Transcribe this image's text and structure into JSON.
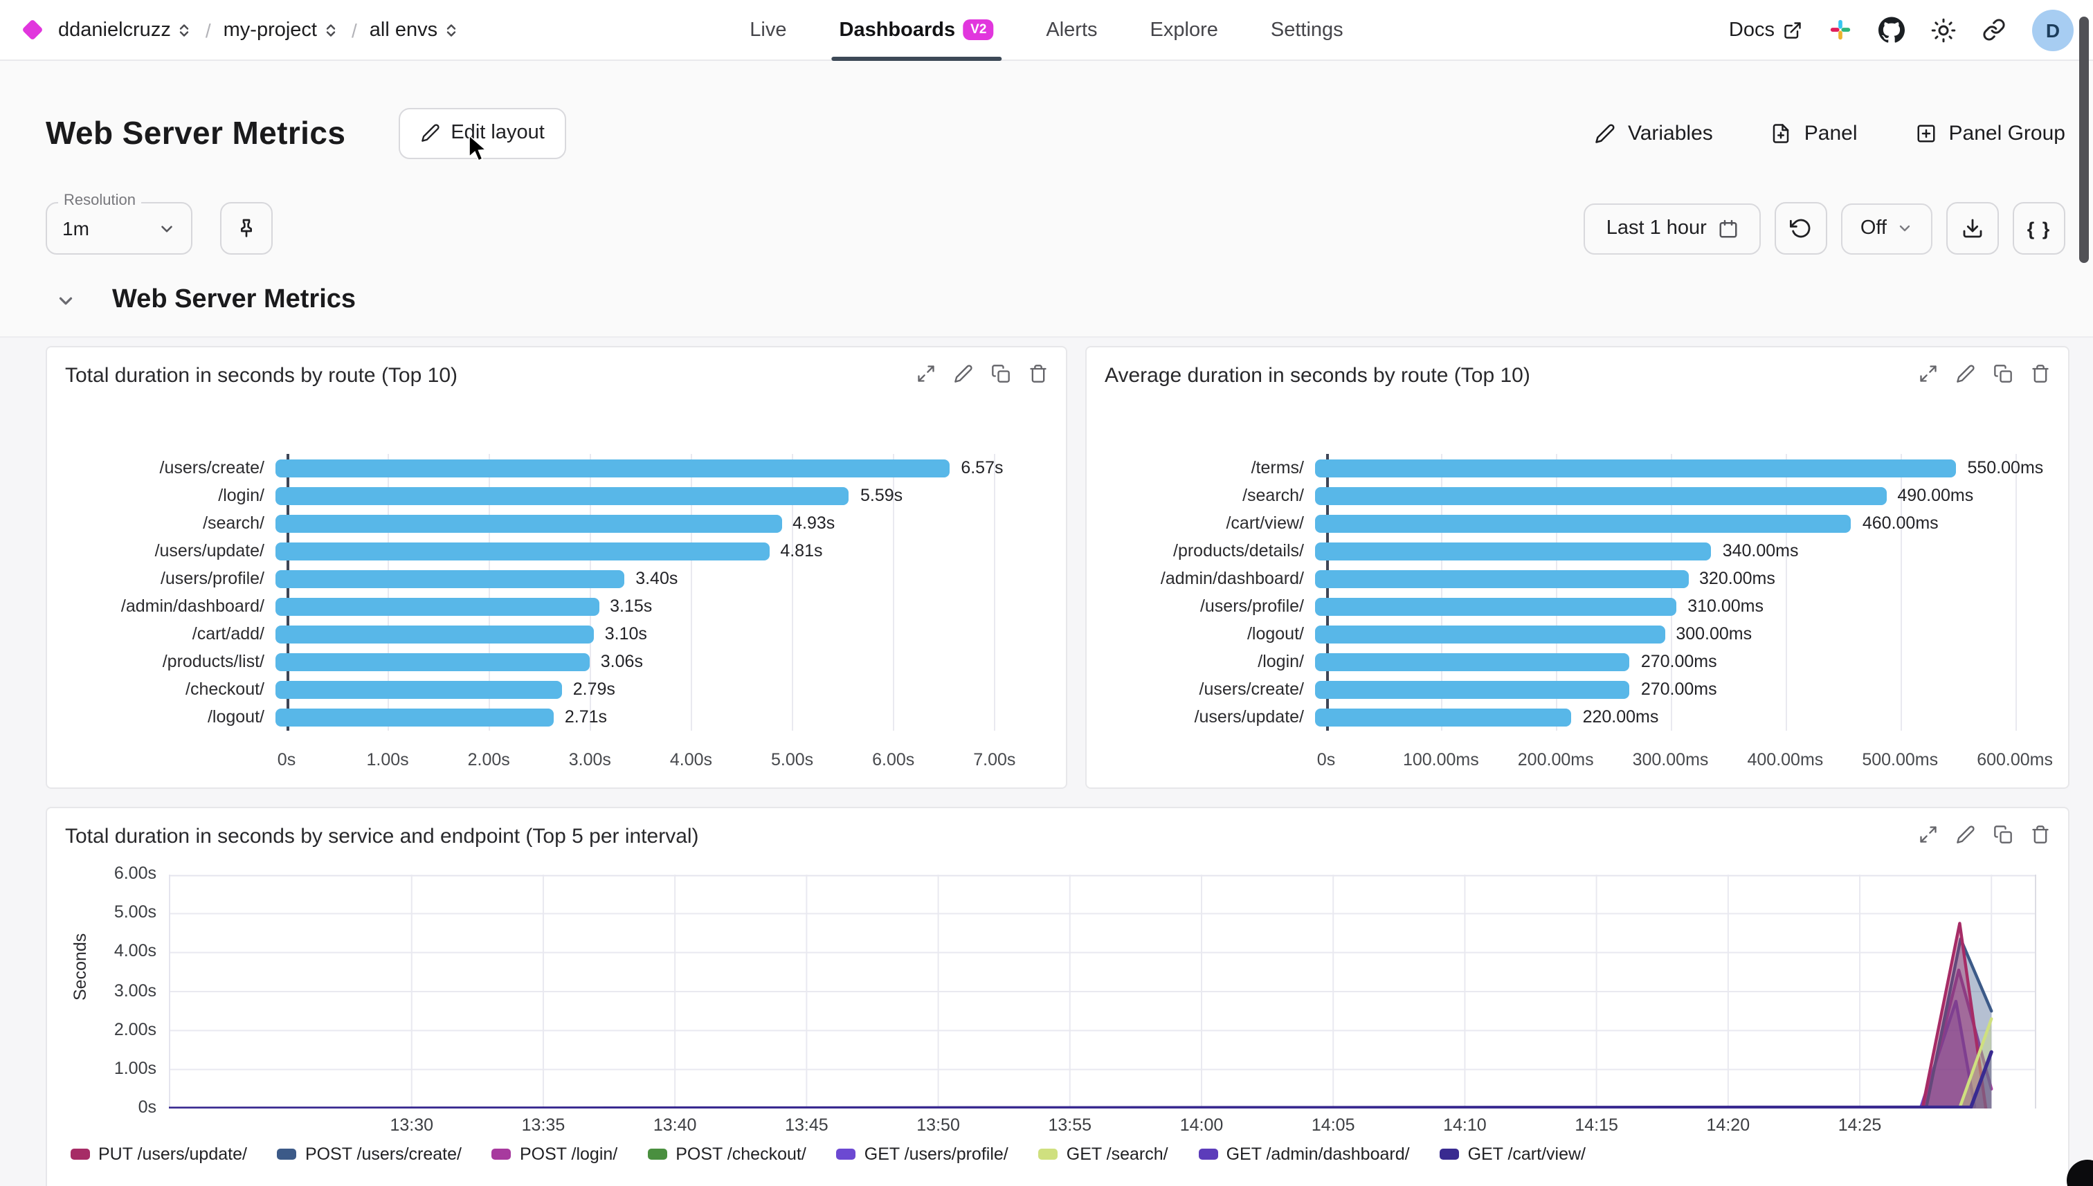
{
  "nav": {
    "breadcrumb": {
      "org": "ddanielcruzz",
      "project": "my-project",
      "env": "all envs",
      "separator": "/"
    },
    "tabs": [
      {
        "label": "Live",
        "active": false,
        "badge": null
      },
      {
        "label": "Dashboards",
        "active": true,
        "badge": "V2"
      },
      {
        "label": "Alerts",
        "active": false,
        "badge": null
      },
      {
        "label": "Explore",
        "active": false,
        "badge": null
      },
      {
        "label": "Settings",
        "active": false,
        "badge": null
      }
    ],
    "docs_label": "Docs",
    "avatar_initial": "D"
  },
  "header": {
    "title": "Web Server Metrics",
    "edit_layout_label": "Edit layout",
    "variables_label": "Variables",
    "panel_label": "Panel",
    "panel_group_label": "Panel Group"
  },
  "controls": {
    "resolution_label": "Resolution",
    "resolution_value": "1m",
    "time_range_label": "Last 1 hour",
    "refresh_mode": "Off",
    "braces_label": "{ }"
  },
  "section": {
    "title": "Web Server Metrics"
  },
  "colors": {
    "accent_magenta": "#e136dd",
    "bar_blue": "#58b7e8",
    "active_tab_underline": "#3d4957",
    "avatar_bg": "#a7cdf2",
    "grid_line": "#e9e9f0"
  },
  "chart_data": [
    {
      "type": "bar",
      "orientation": "horizontal",
      "title": "Total duration in seconds by route (Top 10)",
      "categories": [
        "/users/create/",
        "/login/",
        "/search/",
        "/users/update/",
        "/users/profile/",
        "/admin/dashboard/",
        "/cart/add/",
        "/products/list/",
        "/checkout/",
        "/logout/"
      ],
      "values": [
        6.57,
        5.59,
        4.93,
        4.81,
        3.4,
        3.15,
        3.1,
        3.06,
        2.79,
        2.71
      ],
      "value_labels": [
        "6.57s",
        "5.59s",
        "4.93s",
        "4.81s",
        "3.40s",
        "3.15s",
        "3.10s",
        "3.06s",
        "2.79s",
        "2.71s"
      ],
      "xticks": [
        {
          "label": "0s",
          "v": 0
        },
        {
          "label": "1.00s",
          "v": 1
        },
        {
          "label": "2.00s",
          "v": 2
        },
        {
          "label": "3.00s",
          "v": 3
        },
        {
          "label": "4.00s",
          "v": 4
        },
        {
          "label": "5.00s",
          "v": 5
        },
        {
          "label": "6.00s",
          "v": 6
        },
        {
          "label": "7.00s",
          "v": 7
        }
      ],
      "axis_span": 7.35,
      "bar_color": "#58b7e8",
      "grid": true
    },
    {
      "type": "bar",
      "orientation": "horizontal",
      "title": "Average duration in seconds by route (Top 10)",
      "categories": [
        "/terms/",
        "/search/",
        "/cart/view/",
        "/products/details/",
        "/admin/dashboard/",
        "/users/profile/",
        "/logout/",
        "/login/",
        "/users/create/",
        "/users/update/"
      ],
      "values": [
        550,
        490,
        460,
        340,
        320,
        310,
        300,
        270,
        270,
        220
      ],
      "value_labels": [
        "550.00ms",
        "490.00ms",
        "460.00ms",
        "340.00ms",
        "320.00ms",
        "310.00ms",
        "300.00ms",
        "270.00ms",
        "270.00ms",
        "220.00ms"
      ],
      "xticks": [
        {
          "label": "0s",
          "v": 0
        },
        {
          "label": "100.00ms",
          "v": 100
        },
        {
          "label": "200.00ms",
          "v": 200
        },
        {
          "label": "300.00ms",
          "v": 300
        },
        {
          "label": "400.00ms",
          "v": 400
        },
        {
          "label": "500.00ms",
          "v": 500
        },
        {
          "label": "600.00ms",
          "v": 600
        }
      ],
      "axis_span": 615,
      "bar_color": "#58b7e8",
      "grid": true
    },
    {
      "type": "area",
      "title": "Total duration in seconds by service and endpoint (Top 5 per interval)",
      "ylabel": "Seconds",
      "ymax": 6,
      "yticks": [
        {
          "label": "0s",
          "v": 0
        },
        {
          "label": "1.00s",
          "v": 1
        },
        {
          "label": "2.00s",
          "v": 2
        },
        {
          "label": "3.00s",
          "v": 3
        },
        {
          "label": "4.00s",
          "v": 4
        },
        {
          "label": "5.00s",
          "v": 5
        },
        {
          "label": "6.00s",
          "v": 6
        }
      ],
      "xticks": [
        "13:30",
        "13:35",
        "13:40",
        "13:45",
        "13:50",
        "13:55",
        "14:00",
        "14:05",
        "14:10",
        "14:15",
        "14:20",
        "14:25"
      ],
      "xtick_start_pct": 13,
      "xtick_step_pct": 7.05,
      "grid": true,
      "legend_position": "bottom",
      "series": [
        {
          "name": "POST /checkout/",
          "color": "#4a8f3f",
          "points": [
            [
              0,
              0
            ],
            [
              93.6,
              0
            ]
          ]
        },
        {
          "name": "GET /admin/dashboard/",
          "color": "#5c3cba",
          "points": [
            [
              0,
              0
            ],
            [
              93.8,
              0
            ]
          ]
        },
        {
          "name": "GET /users/profile/",
          "color": "#6c49d2",
          "points": [
            [
              0,
              0
            ],
            [
              93.8,
              0
            ],
            [
              95.7,
              2.75
            ],
            [
              96.7,
              0.05
            ]
          ]
        },
        {
          "name": "POST /login/",
          "color": "#a73a9e",
          "points": [
            [
              0,
              0
            ],
            [
              94.0,
              0
            ],
            [
              95.85,
              3.55
            ],
            [
              97.6,
              0.5
            ]
          ]
        },
        {
          "name": "POST /users/create/",
          "color": "#3c5a88",
          "points": [
            [
              0,
              0
            ],
            [
              94.1,
              0
            ],
            [
              95.95,
              4.35
            ],
            [
              97.6,
              2.5
            ]
          ]
        },
        {
          "name": "PUT /users/update/",
          "color": "#a62c66",
          "points": [
            [
              0,
              0
            ],
            [
              93.9,
              0
            ],
            [
              95.9,
              4.75
            ],
            [
              97.3,
              0
            ]
          ]
        },
        {
          "name": "GET /search/",
          "color": "#cfe07f",
          "points": [
            [
              95.9,
              0.02
            ],
            [
              97.6,
              2.3
            ]
          ]
        },
        {
          "name": "GET /cart/view/",
          "color": "#392a90",
          "points": [
            [
              0,
              0
            ],
            [
              96.5,
              0.03
            ],
            [
              97.6,
              1.45
            ]
          ]
        }
      ],
      "legend": [
        {
          "label": "PUT /users/update/",
          "color": "#a62c66"
        },
        {
          "label": "POST /users/create/",
          "color": "#3c5a88"
        },
        {
          "label": "POST /login/",
          "color": "#a73a9e"
        },
        {
          "label": "POST /checkout/",
          "color": "#4a8f3f"
        },
        {
          "label": "GET /users/profile/",
          "color": "#6c49d2"
        },
        {
          "label": "GET /search/",
          "color": "#cfe07f"
        },
        {
          "label": "GET /admin/dashboard/",
          "color": "#5c3cba"
        },
        {
          "label": "GET /cart/view/",
          "color": "#392a90"
        }
      ]
    }
  ]
}
